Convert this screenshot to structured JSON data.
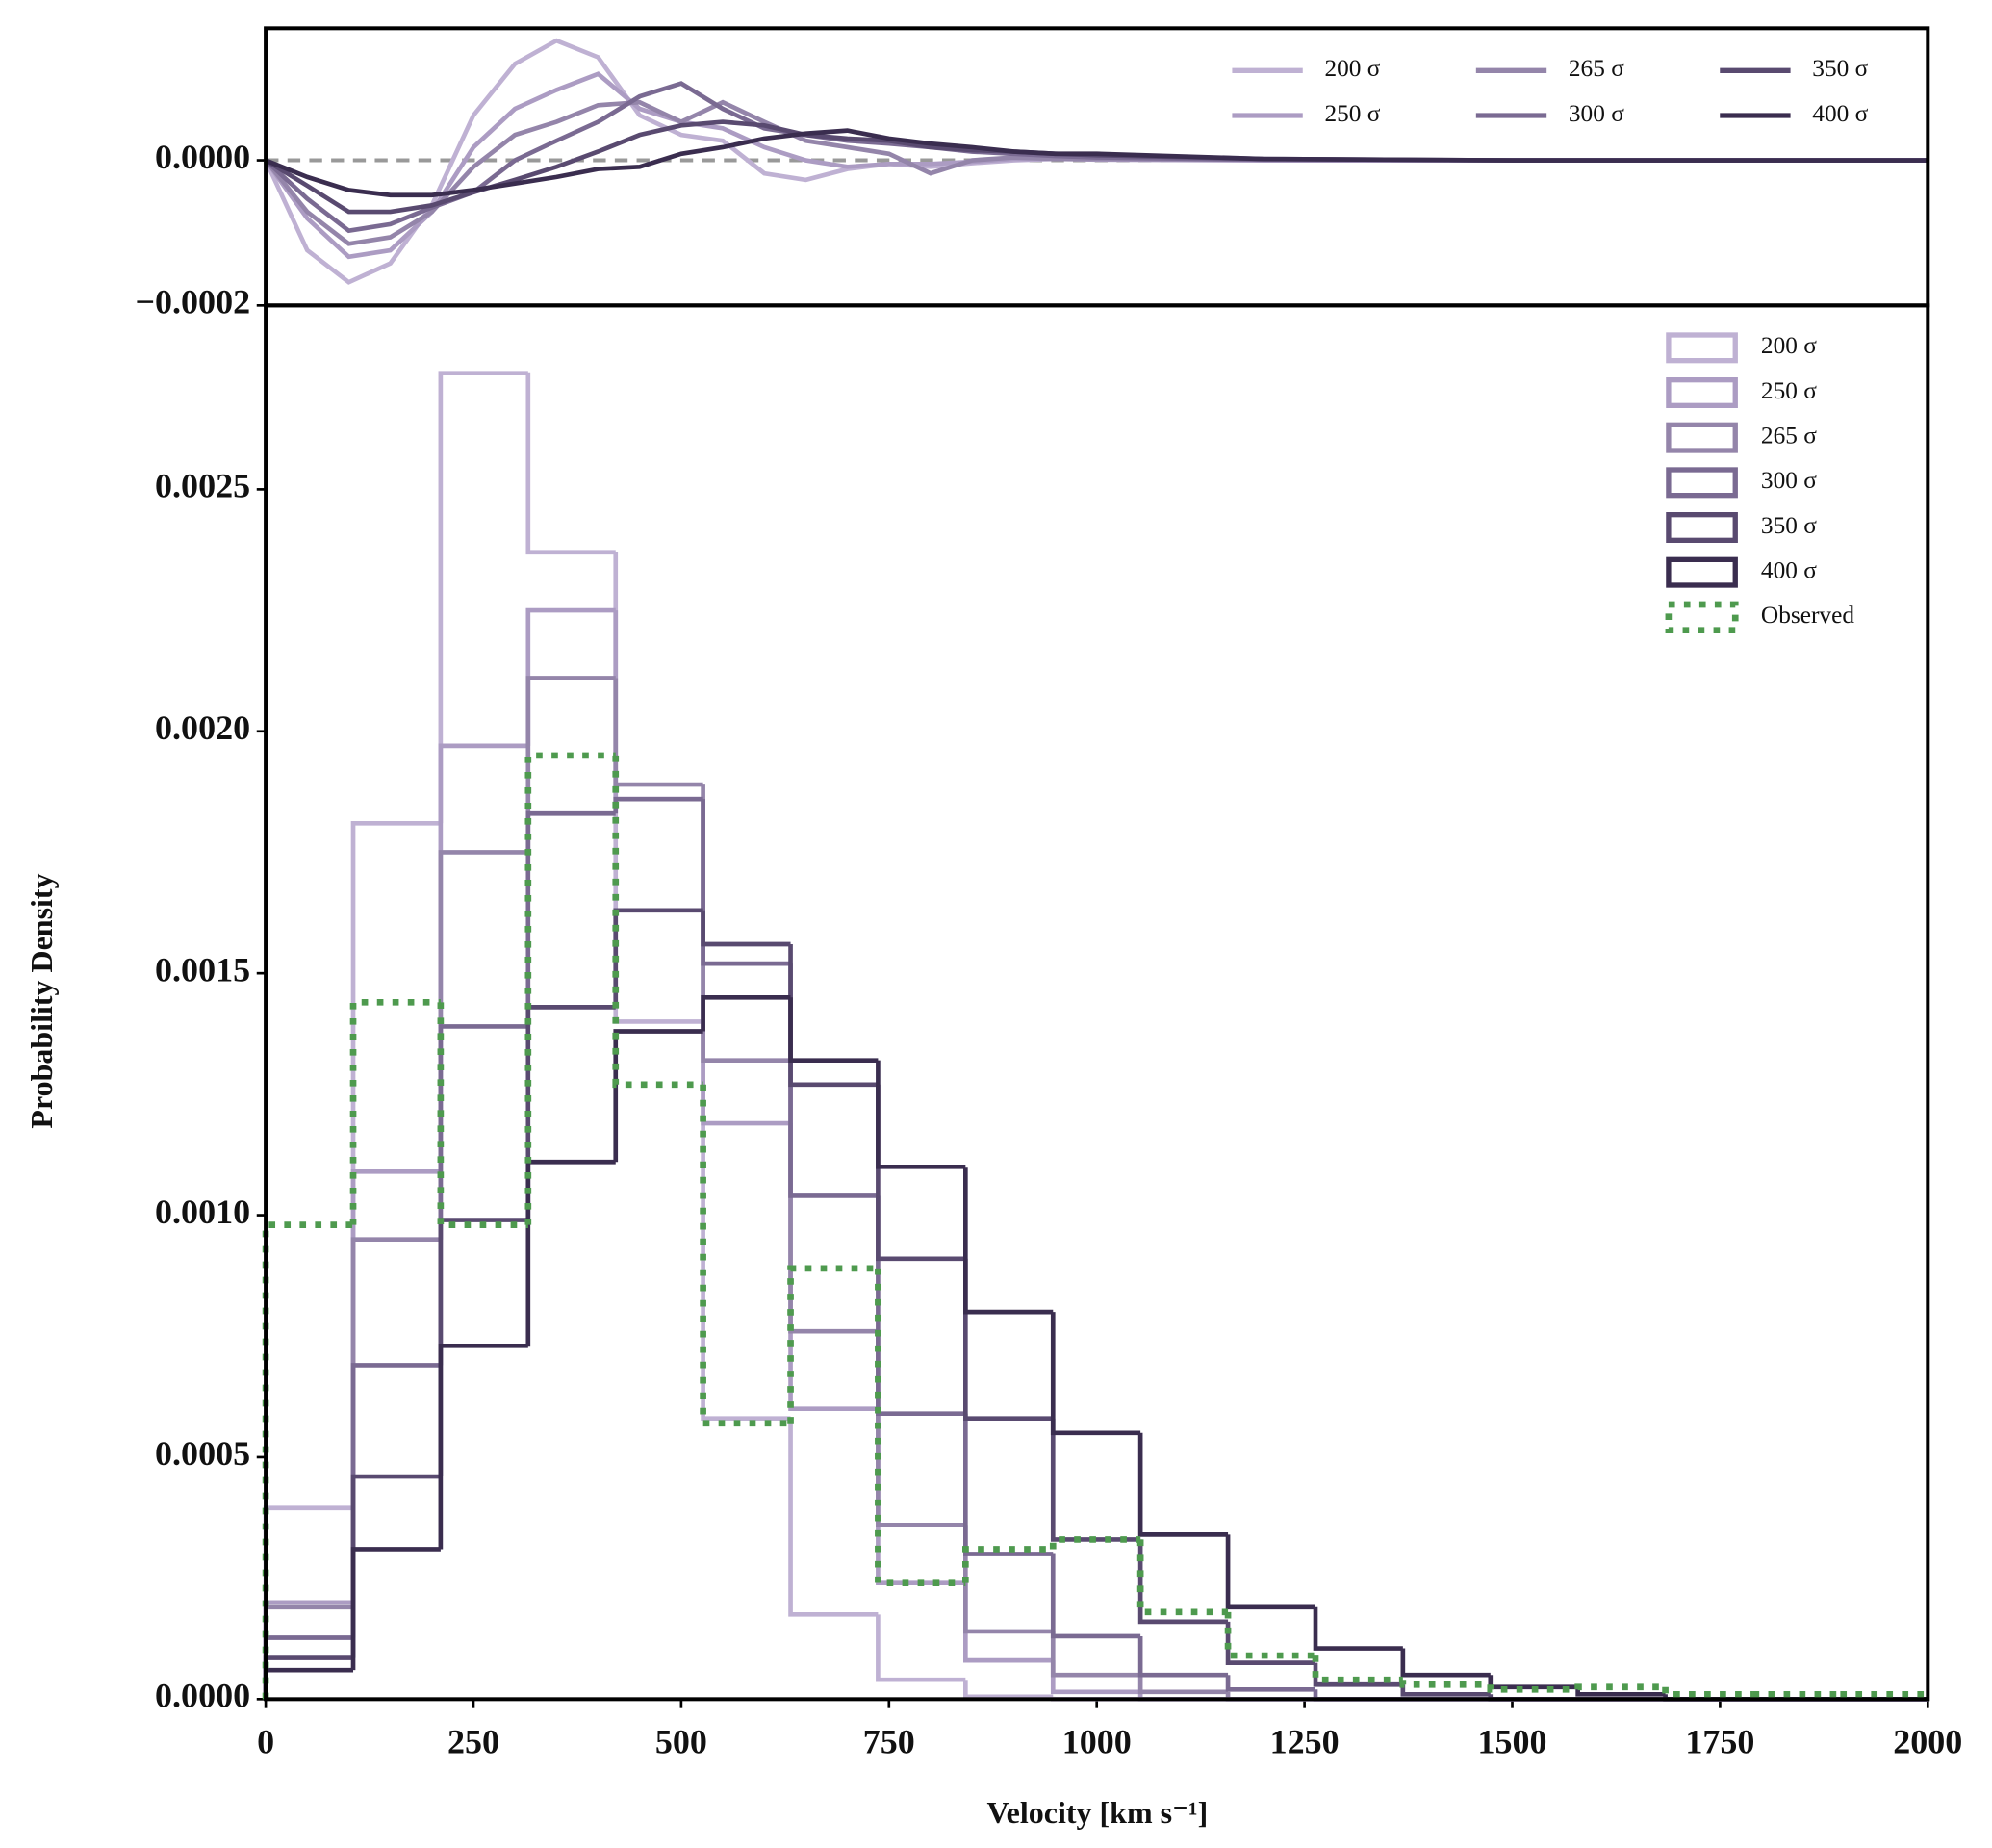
{
  "chart_data": [
    {
      "type": "line",
      "x": [
        0,
        50,
        100,
        150,
        200,
        250,
        300,
        350,
        400,
        450,
        500,
        550,
        600,
        650,
        700,
        750,
        800,
        850,
        900,
        950,
        1000,
        1200,
        1500,
        2000
      ],
      "xlim": [
        0,
        2000
      ],
      "ylim": [
        -0.0002,
        0.000182
      ],
      "yticks": [
        {
          "value": 0,
          "label": "0.0000"
        },
        {
          "value": -0.0002,
          "label": "−0.0002"
        }
      ],
      "reference_line": 0,
      "legend": "upper right",
      "series": [
        {
          "name": "200 σ",
          "color": "#bfb1d3",
          "values": [
            0,
            -0.000124,
            -0.000168,
            -0.000142,
            -6.2e-05,
            6.2e-05,
            0.000133,
            0.000165,
            0.000142,
            6.2e-05,
            3.5e-05,
            2.7e-05,
            -1.8e-05,
            -2.7e-05,
            -1.2e-05,
            -5e-06,
            -9e-06,
            -4e-06,
            0,
            2e-06,
            2e-06,
            0,
            0,
            0
          ]
        },
        {
          "name": "250 σ",
          "color": "#ac9cc3",
          "values": [
            0,
            -8e-05,
            -0.000133,
            -0.000124,
            -7.1e-05,
            1.8e-05,
            7.1e-05,
            9.7e-05,
            0.000119,
            7.1e-05,
            5.3e-05,
            4.4e-05,
            1.8e-05,
            0,
            -9e-06,
            -5e-06,
            -5e-06,
            -2e-06,
            2e-06,
            2e-06,
            1e-06,
            0,
            0,
            0
          ]
        },
        {
          "name": "265 σ",
          "color": "#9485aa",
          "values": [
            0,
            -7.1e-05,
            -0.000115,
            -0.000106,
            -7.1e-05,
            -9e-06,
            3.5e-05,
            5.3e-05,
            7.6e-05,
            8e-05,
            5.3e-05,
            8e-05,
            5.3e-05,
            2.7e-05,
            1.8e-05,
            9e-06,
            -1.8e-05,
            0,
            4e-06,
            2e-06,
            2e-06,
            1e-06,
            0,
            0
          ]
        },
        {
          "name": "300 σ",
          "color": "#7a6a92",
          "values": [
            0,
            -5.3e-05,
            -9.7e-05,
            -8.8e-05,
            -6.5e-05,
            -4.4e-05,
            0,
            2.7e-05,
            5.3e-05,
            8.8e-05,
            0.000106,
            7.1e-05,
            4.4e-05,
            3.5e-05,
            2.7e-05,
            2.3e-05,
            1.8e-05,
            1.2e-05,
            9e-06,
            6e-06,
            4e-06,
            1e-06,
            0,
            0
          ]
        },
        {
          "name": "350 σ",
          "color": "#594a70",
          "values": [
            0,
            -3.5e-05,
            -7.1e-05,
            -7.1e-05,
            -6.2e-05,
            -4.4e-05,
            -2.7e-05,
            -9e-06,
            1.2e-05,
            3.5e-05,
            4.8e-05,
            5.3e-05,
            4.8e-05,
            3.5e-05,
            3e-05,
            2.7e-05,
            1.8e-05,
            1.4e-05,
            1.2e-05,
            9e-06,
            7e-06,
            2e-06,
            0,
            0
          ]
        },
        {
          "name": "400 σ",
          "color": "#3a2d4f",
          "values": [
            0,
            -2.3e-05,
            -4.1e-05,
            -4.8e-05,
            -4.8e-05,
            -4.1e-05,
            -3.2e-05,
            -2.3e-05,
            -1.2e-05,
            -9e-06,
            9e-06,
            1.8e-05,
            3e-05,
            3.7e-05,
            4.1e-05,
            3e-05,
            2.3e-05,
            1.8e-05,
            1.2e-05,
            9e-06,
            9e-06,
            2e-06,
            0,
            0
          ]
        }
      ]
    },
    {
      "type": "histogram",
      "xlabel": "Velocity [km s⁻¹]",
      "ylabel": "Probability Density",
      "bins": [
        0,
        105.3,
        210.5,
        315.8,
        421.1,
        526.3,
        631.6,
        736.8,
        842.1,
        947.4,
        1052.6,
        1157.9,
        1263.2,
        1368.4,
        1473.7,
        1578.9,
        1684.2,
        1789.5,
        1894.7,
        2000
      ],
      "xlim": [
        0,
        2000
      ],
      "ylim": [
        0,
        0.00288
      ],
      "xticks": [
        0,
        250,
        500,
        750,
        1000,
        1250,
        1500,
        1750,
        2000
      ],
      "yticks": [
        {
          "value": 0,
          "label": "0.0000"
        },
        {
          "value": 0.0005,
          "label": "0.0005"
        },
        {
          "value": 0.001,
          "label": "0.0010"
        },
        {
          "value": 0.0015,
          "label": "0.0015"
        },
        {
          "value": 0.002,
          "label": "0.0020"
        },
        {
          "value": 0.0025,
          "label": "0.0025"
        }
      ],
      "legend": "upper right",
      "series": [
        {
          "name": "200 σ",
          "color": "#bfb1d3",
          "values": [
            0.000395,
            0.00181,
            0.00274,
            0.00237,
            0.0014,
            0.00058,
            0.000175,
            4e-05,
            5e-06,
            0,
            0,
            0,
            0,
            0,
            0,
            0,
            0,
            0,
            0
          ]
        },
        {
          "name": "250 σ",
          "color": "#ac9cc3",
          "values": [
            0.0002,
            0.00109,
            0.00197,
            0.00225,
            0.00186,
            0.00119,
            0.0006,
            0.00024,
            8e-05,
            1.5e-05,
            0,
            0,
            0,
            0,
            0,
            0,
            0,
            0,
            0
          ]
        },
        {
          "name": "265 σ",
          "color": "#9485aa",
          "values": [
            0.00019,
            0.00095,
            0.00175,
            0.00211,
            0.00189,
            0.00132,
            0.00076,
            0.00036,
            0.00014,
            5e-05,
            1.5e-05,
            0,
            0,
            0,
            0,
            0,
            0,
            0,
            0
          ]
        },
        {
          "name": "300 σ",
          "color": "#7a6a92",
          "values": [
            0.000127,
            0.00069,
            0.00139,
            0.00183,
            0.00186,
            0.00152,
            0.00104,
            0.00059,
            0.0003,
            0.00013,
            5e-05,
            2e-05,
            0,
            0,
            0,
            0,
            0,
            0,
            0
          ]
        },
        {
          "name": "350 σ",
          "color": "#594a70",
          "values": [
            8.5e-05,
            0.00046,
            0.00099,
            0.00143,
            0.00163,
            0.00156,
            0.00127,
            0.00091,
            0.00058,
            0.00033,
            0.00016,
            7.5e-05,
            3e-05,
            1e-05,
            0,
            0,
            0,
            0,
            0
          ]
        },
        {
          "name": "400 σ",
          "color": "#3a2d4f",
          "values": [
            6e-05,
            0.00031,
            0.00073,
            0.00111,
            0.00138,
            0.00145,
            0.00132,
            0.0011,
            0.0008,
            0.00055,
            0.00034,
            0.00019,
            0.000105,
            5e-05,
            2.5e-05,
            1e-05,
            0,
            0,
            0
          ]
        },
        {
          "name": "Observed",
          "color": "#4e9a4e",
          "linestyle": "dotted",
          "values": [
            0.00098,
            0.00144,
            0.00098,
            0.00195,
            0.00127,
            0.00057,
            0.00089,
            0.00024,
            0.00031,
            0.00033,
            0.00018,
            9e-05,
            4e-05,
            3e-05,
            2e-05,
            2.5e-05,
            1e-05,
            1e-05,
            1e-05
          ]
        }
      ]
    }
  ]
}
